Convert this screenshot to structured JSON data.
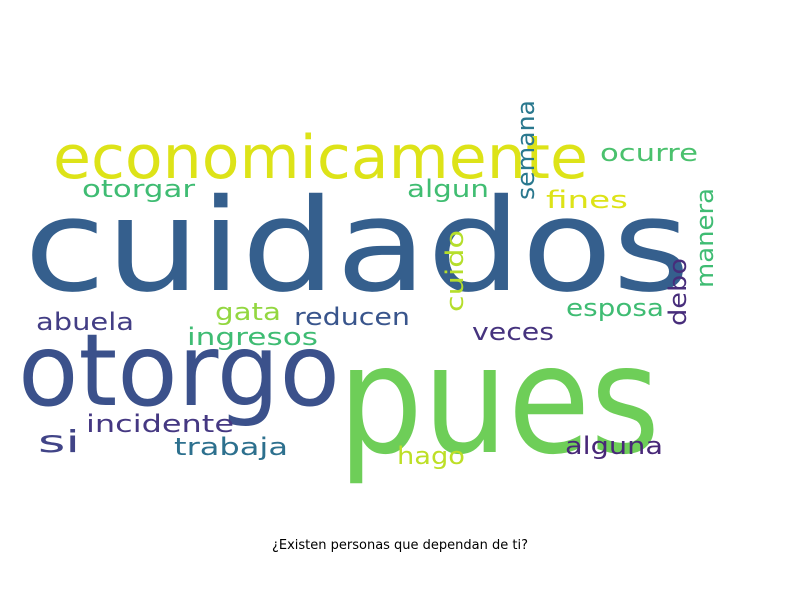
{
  "chart_data": {
    "type": "wordcloud",
    "title": "¿Existen personas que dependan de ti?",
    "words": [
      {
        "text": "cuidados",
        "color": "#355f8d",
        "rotate": 0
      },
      {
        "text": "pues",
        "color": "#6ece58",
        "rotate": 0
      },
      {
        "text": "otorgo",
        "color": "#3b518b",
        "rotate": 0
      },
      {
        "text": "economicamente",
        "color": "#dde318",
        "rotate": 0
      },
      {
        "text": "ocurre",
        "color": "#4ac16d",
        "rotate": 0
      },
      {
        "text": "otorgar",
        "color": "#3fbc73",
        "rotate": 0
      },
      {
        "text": "algun",
        "color": "#40bd72",
        "rotate": 0
      },
      {
        "text": "fines",
        "color": "#dde318",
        "rotate": 0
      },
      {
        "text": "semana",
        "color": "#2a788e",
        "rotate": 90
      },
      {
        "text": "esposa",
        "color": "#3fbc73",
        "rotate": 0
      },
      {
        "text": "gata",
        "color": "#93d741",
        "rotate": 0
      },
      {
        "text": "reducen",
        "color": "#39558c",
        "rotate": 0
      },
      {
        "text": "abuela",
        "color": "#433e85",
        "rotate": 0
      },
      {
        "text": "ingresos",
        "color": "#3fbc73",
        "rotate": 0
      },
      {
        "text": "cuido",
        "color": "#b5de2b",
        "rotate": 90
      },
      {
        "text": "veces",
        "color": "#46337e",
        "rotate": 0
      },
      {
        "text": "debo",
        "color": "#472d7b",
        "rotate": 90
      },
      {
        "text": "manera",
        "color": "#3fbc73",
        "rotate": 90
      },
      {
        "text": "si",
        "color": "#414487",
        "rotate": 0
      },
      {
        "text": "incidente",
        "color": "#453882",
        "rotate": 0
      },
      {
        "text": "trabaja",
        "color": "#2d708e",
        "rotate": 0
      },
      {
        "text": "hago",
        "color": "#bddf26",
        "rotate": 0
      },
      {
        "text": "alguna",
        "color": "#482878",
        "rotate": 0
      }
    ]
  }
}
